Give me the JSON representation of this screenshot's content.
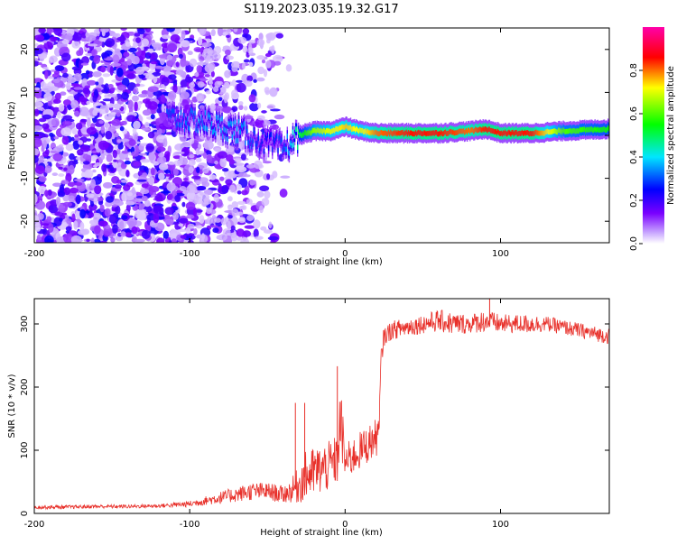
{
  "figure": {
    "title": "S119.2023.035.19.32.G17"
  },
  "chart_data": [
    {
      "type": "heatmap",
      "xlabel": "Height of straight line (km)",
      "ylabel": "Frequency (Hz)",
      "xlim": [
        -200,
        170
      ],
      "ylim": [
        -25,
        25
      ],
      "xticks": [
        -200,
        -100,
        0,
        100
      ],
      "yticks": [
        -20,
        -10,
        0,
        10,
        20
      ],
      "grid": false,
      "colorbar": {
        "label": "Normalized spectral amplitude",
        "range": [
          0,
          1
        ],
        "ticks": [
          0.0,
          0.2,
          0.4,
          0.6,
          0.8
        ],
        "colormap": [
          "#ffffff",
          "#7a00ff",
          "#0000ff",
          "#00e6ff",
          "#00ff00",
          "#ffff00",
          "#ff0000",
          "#ff00aa"
        ]
      },
      "ridge": {
        "x": [
          -110,
          -90,
          -70,
          -50,
          -40,
          -30,
          -20,
          -10,
          0,
          10,
          20,
          40,
          60,
          80,
          90,
          100,
          120,
          140,
          170
        ],
        "frequency": [
          4,
          3,
          1,
          -2,
          -3,
          0,
          1,
          1,
          2,
          1,
          0.5,
          0.5,
          0.5,
          1,
          1.5,
          0.5,
          0.5,
          1,
          1.5
        ],
        "amplitude": [
          0.3,
          0.35,
          0.35,
          0.25,
          0.3,
          0.5,
          0.65,
          0.7,
          0.75,
          0.7,
          0.8,
          0.85,
          0.85,
          0.8,
          0.85,
          0.85,
          0.85,
          0.6,
          0.55
        ]
      }
    },
    {
      "type": "line",
      "xlabel": "Height of straight line (km)",
      "ylabel": "SNR (10 * v/v)",
      "xlim": [
        -200,
        170
      ],
      "ylim": [
        0,
        340
      ],
      "xticks": [
        -200,
        -100,
        0,
        100
      ],
      "yticks": [
        0,
        100,
        200,
        300
      ],
      "grid": false,
      "series": [
        {
          "color": "#e8302a",
          "x": [
            -200,
            -180,
            -160,
            -140,
            -120,
            -100,
            -90,
            -80,
            -70,
            -60,
            -50,
            -40,
            -35,
            -30,
            -25,
            -20,
            -15,
            -10,
            -5,
            -3,
            0,
            5,
            10,
            15,
            20,
            22,
            23,
            25,
            30,
            40,
            50,
            60,
            70,
            80,
            90,
            100,
            110,
            120,
            130,
            140,
            150,
            160,
            170
          ],
          "values": [
            10,
            10,
            11,
            11,
            12,
            15,
            20,
            25,
            30,
            35,
            35,
            30,
            35,
            45,
            60,
            65,
            70,
            75,
            85,
            150,
            80,
            90,
            100,
            110,
            120,
            130,
            240,
            280,
            290,
            295,
            300,
            305,
            300,
            300,
            305,
            300,
            300,
            300,
            300,
            295,
            290,
            285,
            280
          ],
          "noise": [
            3,
            3,
            3,
            3,
            3,
            5,
            7,
            10,
            12,
            14,
            14,
            14,
            18,
            30,
            40,
            40,
            40,
            40,
            40,
            60,
            30,
            30,
            30,
            30,
            30,
            30,
            20,
            15,
            15,
            15,
            15,
            18,
            18,
            15,
            18,
            15,
            15,
            15,
            12,
            12,
            12,
            12,
            12
          ]
        }
      ],
      "spikes": [
        {
          "x": -32,
          "value": 175
        },
        {
          "x": -26,
          "value": 175
        },
        {
          "x": -5,
          "value": 233
        },
        {
          "x": 93,
          "value": 340
        }
      ]
    }
  ]
}
